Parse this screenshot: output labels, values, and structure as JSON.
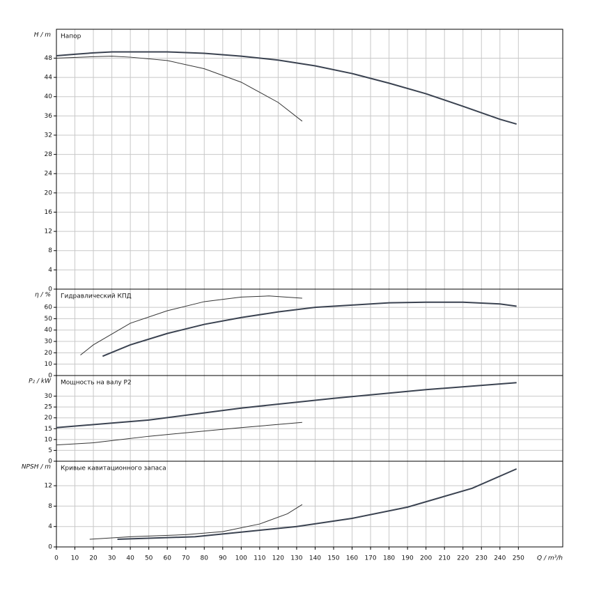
{
  "chart_data": [
    {
      "type": "line",
      "title": "Напор",
      "y_label": "H / m",
      "xlim": [
        0,
        274
      ],
      "ylim": [
        0,
        54
      ],
      "yticks": [
        0,
        4,
        8,
        12,
        16,
        20,
        24,
        28,
        32,
        36,
        40,
        44,
        48
      ],
      "grid": true,
      "series": [
        {
          "color": "#3a4250",
          "width": 2,
          "x": [
            0,
            10,
            20,
            30,
            40,
            50,
            60,
            80,
            100,
            120,
            140,
            160,
            180,
            200,
            220,
            240,
            249
          ],
          "values": [
            48.5,
            48.8,
            49.1,
            49.3,
            49.3,
            49.3,
            49.3,
            49.0,
            48.4,
            47.6,
            46.4,
            44.8,
            42.8,
            40.6,
            38.0,
            35.3,
            34.3
          ]
        },
        {
          "color": "#333333",
          "width": 1,
          "x": [
            0,
            20,
            30,
            40,
            60,
            80,
            100,
            120,
            133
          ],
          "values": [
            48.0,
            48.3,
            48.4,
            48.2,
            47.5,
            45.8,
            43.0,
            38.8,
            34.9
          ]
        }
      ]
    },
    {
      "type": "line",
      "title": "Гидравлический КПД",
      "y_label": "η / %",
      "xlim": [
        0,
        274
      ],
      "ylim": [
        0,
        76
      ],
      "yticks": [
        0,
        10,
        20,
        30,
        40,
        50,
        60
      ],
      "grid": true,
      "series": [
        {
          "color": "#3a4250",
          "width": 2,
          "x": [
            25,
            40,
            60,
            80,
            100,
            120,
            140,
            160,
            180,
            200,
            220,
            240,
            249
          ],
          "values": [
            17,
            27,
            37,
            45,
            51,
            56,
            60,
            62,
            64,
            64.5,
            64.5,
            63,
            61
          ]
        },
        {
          "color": "#333333",
          "width": 1,
          "x": [
            13,
            20,
            40,
            60,
            80,
            100,
            115,
            133
          ],
          "values": [
            18,
            27,
            46,
            57,
            65,
            69,
            70,
            68
          ]
        }
      ]
    },
    {
      "type": "line",
      "title": "Мощность на валу P2",
      "y_label": "P₂ / kW",
      "xlim": [
        0,
        274
      ],
      "ylim": [
        0,
        39.5
      ],
      "yticks": [
        0,
        5,
        10,
        15,
        20,
        25,
        30
      ],
      "grid": true,
      "series": [
        {
          "color": "#3a4250",
          "width": 2,
          "x": [
            0,
            50,
            100,
            150,
            200,
            249
          ],
          "values": [
            15.5,
            19,
            24.5,
            29,
            33,
            36.2
          ]
        },
        {
          "color": "#333333",
          "width": 1,
          "x": [
            0,
            20,
            50,
            100,
            133
          ],
          "values": [
            7.5,
            8.5,
            11.5,
            15.5,
            17.9
          ]
        }
      ]
    },
    {
      "type": "line",
      "title": "Кривые кавитационного запаса",
      "y_label": "NPSH / m",
      "x_label": "Q / m³/h",
      "xlim": [
        0,
        274
      ],
      "ylim": [
        0,
        16.8
      ],
      "yticks": [
        0,
        4,
        8,
        12
      ],
      "grid": true,
      "xticks": [
        0,
        10,
        20,
        30,
        40,
        50,
        60,
        70,
        80,
        90,
        100,
        110,
        120,
        130,
        140,
        150,
        160,
        170,
        180,
        190,
        200,
        210,
        220,
        230,
        240,
        250
      ],
      "series": [
        {
          "color": "#3a4250",
          "width": 2,
          "x": [
            33,
            50,
            75,
            100,
            130,
            160,
            190,
            225,
            249
          ],
          "values": [
            1.5,
            1.7,
            2,
            2.9,
            4,
            5.6,
            7.8,
            11.5,
            15.3
          ]
        },
        {
          "color": "#333333",
          "width": 1,
          "x": [
            18,
            40,
            70,
            90,
            110,
            125,
            133
          ],
          "values": [
            1.5,
            2,
            2.4,
            3,
            4.5,
            6.5,
            8.3
          ]
        }
      ]
    }
  ]
}
